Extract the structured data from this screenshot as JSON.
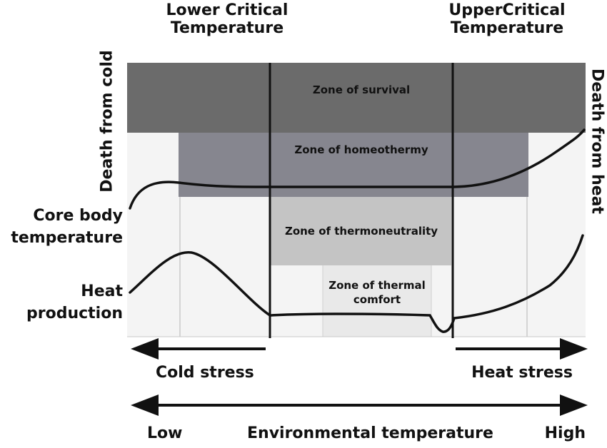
{
  "headers": {
    "lower_critical": "Lower Critical\nTemperature",
    "upper_critical": "UpperCritical\nTemperature"
  },
  "zones": {
    "survival": "Zone of survival",
    "homeothermy": "Zone of homeothermy",
    "thermoneutrality": "Zone of thermoneutrality",
    "thermal_comfort": "Zone of thermal\ncomfort"
  },
  "side_labels": {
    "death_cold": "Death from cold",
    "death_heat": "Death from heat",
    "core_body": "Core body\ntemperature",
    "heat_production": "Heat\nproduction"
  },
  "stress": {
    "cold": "Cold stress",
    "heat": "Heat stress"
  },
  "axis": {
    "low": "Low",
    "title": "Environmental temperature",
    "high": "High"
  },
  "colors": {
    "survival": "#6b6b6b",
    "homeothermy": "#86868f",
    "thermoneutrality": "#c4c4c4",
    "thermal_comfort": "#f0f0f0",
    "background": "#f4f4f4",
    "line": "#111111"
  }
}
